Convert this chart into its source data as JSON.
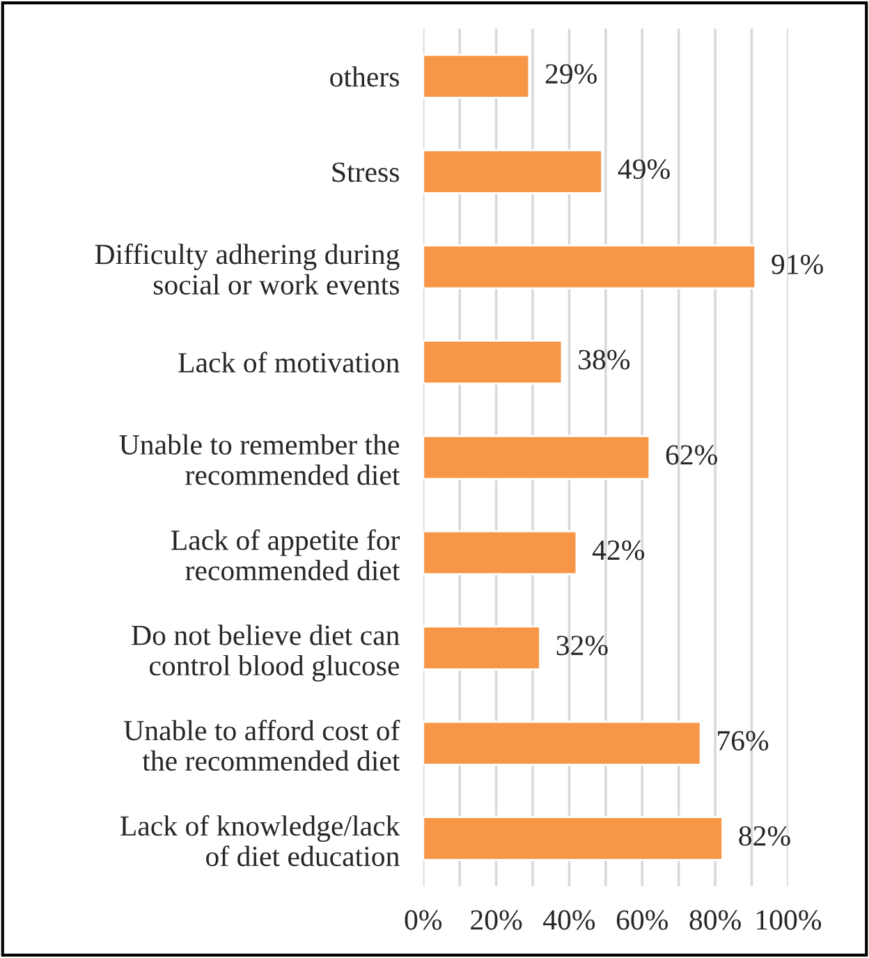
{
  "chart_data": {
    "type": "bar",
    "orientation": "horizontal",
    "categories": [
      "others",
      "Stress",
      "Difficulty adhering during\nsocial or work events",
      "Lack of motivation",
      "Unable to remember the\nrecommended diet",
      "Lack of appetite for\nrecommended diet",
      "Do not believe diet can\ncontrol blood glucose",
      "Unable to afford cost of\nthe recommended diet",
      "Lack of knowledge/lack\nof diet education"
    ],
    "values": [
      29,
      49,
      91,
      38,
      62,
      42,
      32,
      76,
      82
    ],
    "value_labels": [
      "29%",
      "49%",
      "91%",
      "38%",
      "62%",
      "42%",
      "32%",
      "76%",
      "82%"
    ],
    "color": "#f79646",
    "xlim": [
      0,
      100
    ],
    "xticks": [
      {
        "value": 0,
        "label": "0%"
      },
      {
        "value": 10,
        "label": null
      },
      {
        "value": 20,
        "label": "20%"
      },
      {
        "value": 30,
        "label": null
      },
      {
        "value": 40,
        "label": "40%"
      },
      {
        "value": 50,
        "label": null
      },
      {
        "value": 60,
        "label": "60%"
      },
      {
        "value": 70,
        "label": null
      },
      {
        "value": 80,
        "label": "80%"
      },
      {
        "value": 90,
        "label": null
      },
      {
        "value": 100,
        "label": "100%"
      }
    ],
    "grid": "x"
  }
}
